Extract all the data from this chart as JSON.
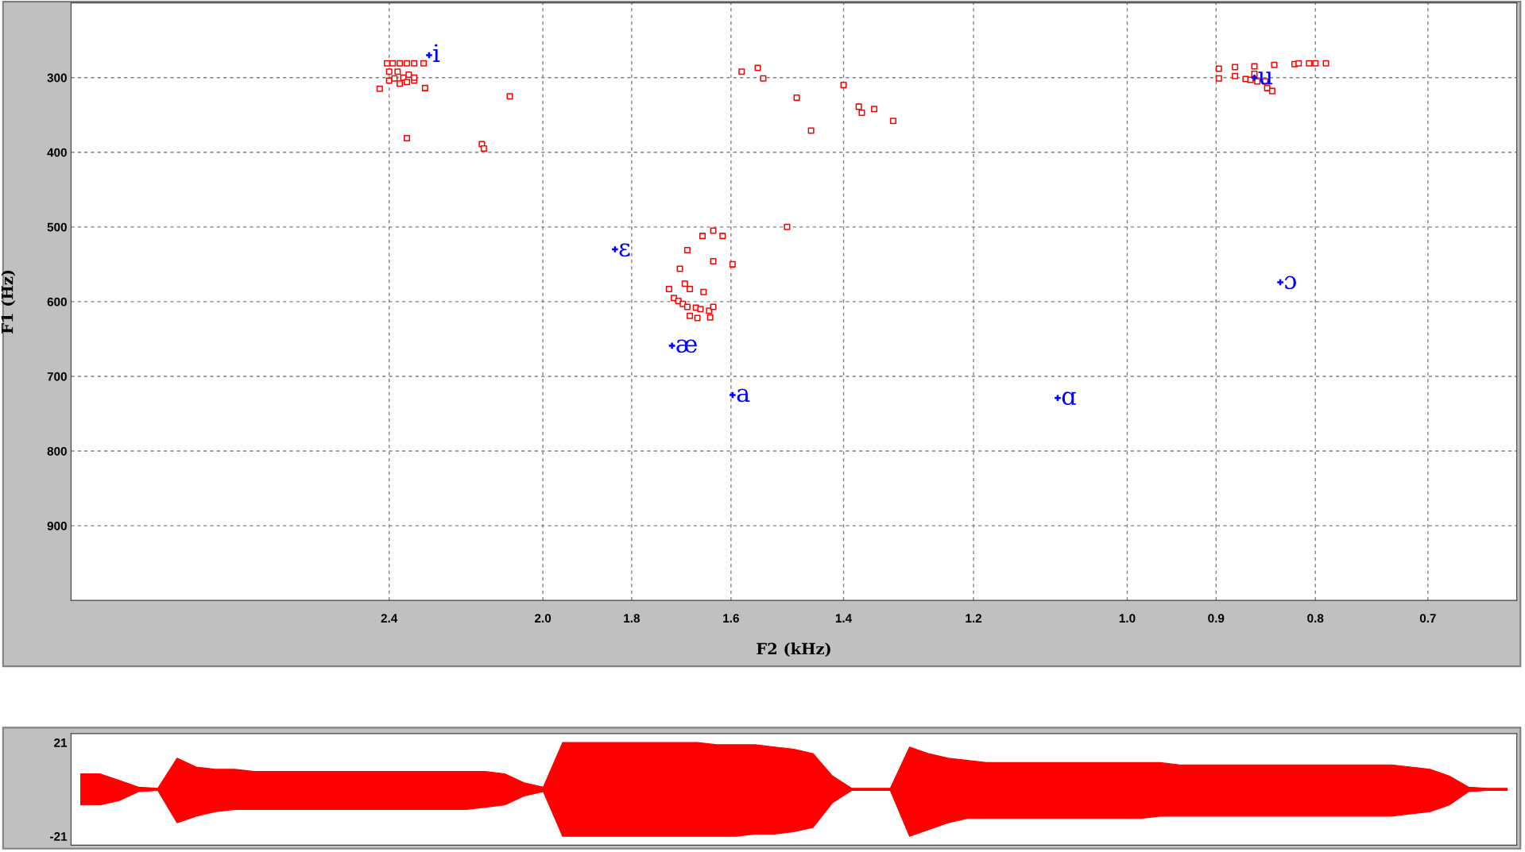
{
  "chart_data": [
    {
      "type": "scatter",
      "xlabel": "F2 (kHz)",
      "ylabel": "F1 (Hz)",
      "xlim": [
        3.5,
        0.63
      ],
      "log": "x",
      "ylim": [
        1000,
        200
      ],
      "xticks": [
        2.4,
        {
          "value": 2,
          "label": "2.0"
        },
        1.8,
        1.6,
        1.4,
        1.2,
        {
          "value": 1,
          "label": "1.0"
        },
        0.9,
        0.8,
        0.7
      ],
      "yticks": [
        300,
        400,
        500,
        600,
        700,
        800,
        900
      ],
      "grid": true,
      "series": [
        {
          "color": "#ff0000",
          "marker": "square",
          "x": [
            2.406,
            2.39,
            2.37,
            2.35,
            2.33,
            2.304,
            2.376,
            2.36,
            2.345,
            2.33,
            2.37,
            2.35,
            2.33,
            2.427,
            2.4,
            2.4,
            2.385,
            2.3,
            2.35,
            2.15,
            2.145,
            2.08,
            1.58,
            1.55,
            1.54,
            1.497,
            1.4,
            1.48,
            1.455,
            1.375,
            1.37,
            1.35,
            1.32,
            0.897,
            0.88,
            0.86,
            0.84,
            0.82,
            0.816,
            0.897,
            0.88,
            0.86,
            0.806,
            0.8,
            0.79,
            0.847,
            0.842,
            0.869,
            0.864,
            0.857,
            0.849,
            1.722,
            1.712,
            1.703,
            1.694,
            1.685,
            1.668,
            1.659,
            1.642,
            1.634,
            1.7,
            1.685,
            1.69,
            1.68,
            1.655,
            1.634,
            1.616,
            1.634,
            1.597,
            1.653,
            1.64,
            1.68,
            1.665
          ],
          "values": [
            281,
            281,
            281,
            281,
            281,
            281,
            292,
            300,
            296,
            304,
            308,
            306,
            300,
            315,
            292,
            304,
            301,
            314,
            381,
            389,
            395,
            325,
            292,
            287,
            301,
            500,
            310,
            327,
            371,
            339,
            347,
            342,
            358,
            288,
            286,
            285,
            283,
            282,
            281,
            301,
            298,
            295,
            281,
            281,
            281,
            314,
            318,
            302,
            303,
            305,
            305,
            583,
            595,
            599,
            603,
            607,
            608,
            610,
            612,
            607,
            556,
            531,
            576,
            583,
            512,
            505,
            512,
            546,
            550,
            587,
            621,
            619,
            622
          ]
        },
        {
          "color": "#0000ff",
          "marker": "cross",
          "x": [
            2.289,
            1.836,
            1.716,
            1.597,
            1.086,
            0.834,
            0.86
          ],
          "values": [
            270,
            530,
            659,
            725,
            729,
            574,
            300
          ]
        }
      ],
      "annotations": [
        {
          "text": "i",
          "x": 2.289,
          "y": 270
        },
        {
          "text": "ɛ",
          "x": 1.836,
          "y": 530
        },
        {
          "text": "æ",
          "x": 1.716,
          "y": 659
        },
        {
          "text": "a",
          "x": 1.597,
          "y": 725
        },
        {
          "text": "ɑ",
          "x": 1.086,
          "y": 729
        },
        {
          "text": "ɔ",
          "x": 0.834,
          "y": 574
        },
        {
          "text": "u",
          "x": 0.86,
          "y": 300
        }
      ]
    },
    {
      "type": "area",
      "categories": [
        null,
        null,
        null,
        null,
        null,
        null,
        null,
        null,
        null,
        null,
        null,
        null,
        null,
        null,
        null,
        null,
        null,
        null,
        null,
        null,
        null,
        null,
        null,
        null,
        null,
        null,
        null,
        null,
        null,
        null,
        null,
        null,
        null,
        null,
        null,
        null,
        null,
        null,
        null,
        null,
        null,
        null,
        null,
        null,
        null,
        null,
        null,
        null,
        null,
        null,
        null,
        null,
        null,
        null,
        null,
        null,
        null,
        null,
        null,
        null,
        null,
        null,
        null,
        null,
        null,
        null,
        null,
        null,
        null,
        null,
        null,
        null,
        null,
        null,
        null
      ],
      "ylim": [
        -25,
        25
      ],
      "yticks": [
        21,
        -21
      ],
      "tick_labels": "y",
      "series": [
        {
          "color": "#ff0000",
          "values": [
            7,
            7,
            4,
            1,
            0.5,
            14,
            10,
            9,
            9,
            8,
            8,
            8,
            8,
            8,
            8,
            8,
            8,
            8,
            8,
            8,
            8,
            8,
            7,
            3,
            1,
            21,
            21,
            21,
            21,
            21,
            21,
            21,
            21,
            20,
            20,
            20,
            19,
            18,
            16,
            6,
            0.5,
            0.5,
            0.5,
            19,
            16,
            14,
            13,
            12,
            12,
            12,
            12,
            12,
            12,
            12,
            12,
            12,
            12,
            11,
            11,
            11,
            11,
            11,
            11,
            11,
            11,
            11,
            11,
            11,
            11,
            10,
            9,
            6,
            1,
            0.5,
            0.5
          ]
        },
        {
          "color": "#ff0000",
          "values": [
            -7,
            -7,
            -5,
            -1,
            -0.5,
            -15,
            -12,
            -10,
            -9,
            -9,
            -9,
            -9,
            -9,
            -9,
            -9,
            -9,
            -9,
            -9,
            -9,
            -9,
            -9,
            -8,
            -7,
            -3,
            -1,
            -21,
            -21,
            -21,
            -21,
            -21,
            -21,
            -21,
            -21,
            -21,
            -21,
            -20,
            -20,
            -19,
            -17,
            -6,
            -0.5,
            -0.5,
            -0.5,
            -21,
            -18,
            -15,
            -13,
            -13,
            -13,
            -13,
            -13,
            -13,
            -13,
            -13,
            -13,
            -13,
            -12,
            -12,
            -12,
            -12,
            -12,
            -12,
            -12,
            -12,
            -12,
            -12,
            -12,
            -12,
            -12,
            -11,
            -10,
            -7,
            -1,
            -0.5,
            -0.5
          ]
        }
      ]
    }
  ]
}
